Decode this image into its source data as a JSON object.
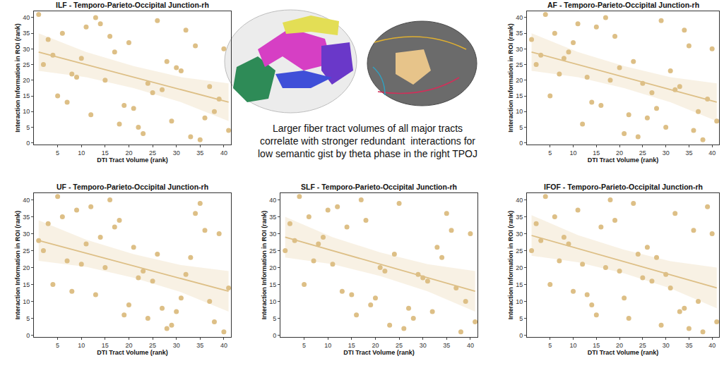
{
  "chart_data": [
    {
      "type": "scatter",
      "title": "ILF - Temporo-Parieto-Occipital Junction-rh",
      "x_label": "DTI Tract Volume (rank)",
      "y_label": "Interaction Information in ROI (rank)",
      "x": [
        1,
        2,
        3,
        4,
        5,
        6,
        7,
        8,
        9,
        10,
        11,
        12,
        13,
        14,
        15,
        16,
        17,
        18,
        19,
        20,
        21,
        22,
        23,
        24,
        25,
        26,
        27,
        28,
        29,
        30,
        31,
        32,
        33,
        34,
        35,
        36,
        37,
        38,
        39,
        40,
        41
      ],
      "values": [
        41,
        25,
        33,
        28,
        15,
        35,
        13,
        22,
        21,
        27,
        37,
        9,
        40,
        38,
        20,
        34,
        29,
        6,
        12,
        32,
        11,
        5,
        3,
        19,
        16,
        39,
        17,
        26,
        7,
        24,
        23,
        36,
        2,
        31,
        1,
        8,
        18,
        10,
        14,
        30,
        4
      ],
      "color": "#ddbf86",
      "fit": {
        "x": [
          1,
          41
        ],
        "values": [
          29,
          13
        ]
      },
      "band": {
        "x": [
          1,
          11,
          21,
          31,
          41
        ],
        "lower": [
          23,
          21,
          17.5,
          13,
          7
        ],
        "upper": [
          35,
          29,
          24.5,
          21,
          19
        ]
      },
      "xlim": [
        0,
        41.5
      ],
      "xticks": [
        5,
        10,
        15,
        20,
        25,
        30,
        35,
        40
      ],
      "ylim": [
        -0.5,
        42
      ],
      "yticks": [
        0,
        5,
        10,
        15,
        20,
        25,
        30,
        35,
        40
      ]
    },
    {
      "type": "scatter",
      "title": "AF - Temporo-Parieto-Occipital Junction-rh",
      "x_label": "DTI Tract Volume (rank)",
      "y_label": "Interaction Information in ROI (rank)",
      "x": [
        1,
        2,
        3,
        4,
        5,
        6,
        7,
        8,
        9,
        10,
        11,
        12,
        13,
        14,
        15,
        16,
        17,
        18,
        19,
        20,
        21,
        22,
        23,
        24,
        25,
        26,
        27,
        28,
        29,
        30,
        31,
        32,
        33,
        34,
        35,
        36,
        37,
        38,
        39,
        40,
        41
      ],
      "values": [
        33,
        25,
        28,
        41,
        15,
        35,
        22,
        27,
        29,
        32,
        38,
        6,
        21,
        13,
        37,
        12,
        40,
        20,
        34,
        24,
        3,
        9,
        26,
        2,
        19,
        8,
        16,
        11,
        39,
        5,
        23,
        17,
        18,
        36,
        31,
        4,
        10,
        1,
        14,
        30,
        7
      ],
      "color": "#ddbf86",
      "fit": {
        "x": [
          1,
          41
        ],
        "values": [
          29,
          13
        ]
      },
      "band": {
        "x": [
          1,
          11,
          21,
          31,
          41
        ],
        "lower": [
          23,
          21,
          17.5,
          13,
          7
        ],
        "upper": [
          35,
          29,
          24.5,
          21,
          19
        ]
      },
      "xlim": [
        0,
        41.5
      ],
      "xticks": [
        5,
        10,
        15,
        20,
        25,
        30,
        35,
        40
      ],
      "ylim": [
        -0.5,
        42
      ],
      "yticks": [
        0,
        5,
        10,
        15,
        20,
        25,
        30,
        35,
        40
      ]
    },
    {
      "type": "scatter",
      "title": "UF - Temporo-Parieto-Occipital Junction-rh",
      "x_label": "DTI Tract Volume (rank)",
      "y_label": "Interaction Information in ROI (rank)",
      "x": [
        1,
        2,
        3,
        4,
        5,
        6,
        7,
        8,
        9,
        10,
        11,
        12,
        13,
        14,
        15,
        16,
        17,
        18,
        19,
        20,
        21,
        22,
        23,
        24,
        25,
        26,
        27,
        28,
        29,
        30,
        31,
        32,
        33,
        34,
        35,
        36,
        37,
        38,
        39,
        40,
        41
      ],
      "values": [
        28,
        25,
        33,
        15,
        41,
        35,
        22,
        13,
        37,
        21,
        27,
        38,
        12,
        29,
        20,
        40,
        32,
        34,
        6,
        9,
        26,
        17,
        19,
        5,
        16,
        24,
        8,
        2,
        3,
        7,
        11,
        18,
        23,
        36,
        39,
        31,
        10,
        4,
        30,
        1,
        14
      ],
      "color": "#ddbf86",
      "fit": {
        "x": [
          1,
          41
        ],
        "values": [
          28,
          13
        ]
      },
      "band": {
        "x": [
          1,
          11,
          21,
          31,
          41
        ],
        "lower": [
          22,
          20.25,
          17,
          12.75,
          7
        ],
        "upper": [
          34,
          28.25,
          24,
          20.75,
          19
        ]
      },
      "xlim": [
        0,
        41.5
      ],
      "xticks": [
        5,
        10,
        15,
        20,
        25,
        30,
        35,
        40
      ],
      "ylim": [
        -0.5,
        42
      ],
      "yticks": [
        0,
        5,
        10,
        15,
        20,
        25,
        30,
        35,
        40
      ]
    },
    {
      "type": "scatter",
      "title": "SLF - Temporo-Parieto-Occipital Junction-rh",
      "x_label": "DTI Tract Volume (rank)",
      "y_label": "Interaction Information in ROI (rank)",
      "x": [
        1,
        2,
        3,
        4,
        5,
        6,
        7,
        8,
        9,
        10,
        11,
        12,
        13,
        14,
        15,
        16,
        17,
        18,
        19,
        20,
        21,
        22,
        23,
        24,
        25,
        26,
        27,
        28,
        29,
        30,
        31,
        32,
        33,
        34,
        35,
        36,
        37,
        38,
        39,
        40,
        41
      ],
      "values": [
        25,
        33,
        28,
        41,
        15,
        35,
        22,
        27,
        29,
        37,
        21,
        38,
        13,
        32,
        12,
        6,
        40,
        34,
        9,
        11,
        20,
        19,
        3,
        24,
        39,
        2,
        8,
        5,
        18,
        17,
        16,
        7,
        26,
        23,
        36,
        31,
        14,
        1,
        10,
        30,
        4
      ],
      "color": "#ddbf86",
      "fit": {
        "x": [
          1,
          41
        ],
        "values": [
          29,
          13
        ]
      },
      "band": {
        "x": [
          1,
          11,
          21,
          31,
          41
        ],
        "lower": [
          23,
          21,
          17.5,
          13,
          7
        ],
        "upper": [
          35,
          29,
          24.5,
          21,
          19
        ]
      },
      "xlim": [
        0,
        41.5
      ],
      "xticks": [
        5,
        10,
        15,
        20,
        25,
        30,
        35,
        40
      ],
      "ylim": [
        -0.5,
        42
      ],
      "yticks": [
        0,
        5,
        10,
        15,
        20,
        25,
        30,
        35,
        40
      ]
    },
    {
      "type": "scatter",
      "title": "IFOF - Temporo-Parieto-Occipital Junction-rh",
      "x_label": "DTI Tract Volume (rank)",
      "y_label": "Interaction Information in ROI (rank)",
      "x": [
        1,
        2,
        3,
        4,
        5,
        6,
        7,
        8,
        9,
        10,
        11,
        12,
        13,
        14,
        15,
        16,
        17,
        18,
        19,
        20,
        21,
        22,
        23,
        24,
        25,
        26,
        27,
        28,
        29,
        30,
        31,
        32,
        33,
        34,
        35,
        36,
        37,
        38,
        39,
        40,
        41
      ],
      "values": [
        25,
        33,
        28,
        41,
        15,
        35,
        22,
        29,
        27,
        13,
        37,
        21,
        12,
        9,
        6,
        32,
        20,
        40,
        34,
        19,
        11,
        5,
        39,
        24,
        17,
        26,
        16,
        23,
        3,
        18,
        14,
        36,
        7,
        8,
        2,
        31,
        10,
        1,
        38,
        30,
        4
      ],
      "color": "#ddbf86",
      "fit": {
        "x": [
          1,
          41
        ],
        "values": [
          29.5,
          14
        ]
      },
      "band": {
        "x": [
          1,
          11,
          21,
          31,
          41
        ],
        "lower": [
          23.5,
          21.6,
          18.3,
          13.9,
          8
        ],
        "upper": [
          35.5,
          29.6,
          25.3,
          21.9,
          20
        ]
      },
      "xlim": [
        0,
        41.5
      ],
      "xticks": [
        5,
        10,
        15,
        20,
        25,
        30,
        35,
        40
      ],
      "ylim": [
        -0.5,
        42
      ],
      "yticks": [
        0,
        5,
        10,
        15,
        20,
        25,
        30,
        35,
        40
      ]
    }
  ],
  "caption": [
    "Larger fiber tract volumes of all major tracts",
    "correlate with stronger redundant  interactions for",
    "low semantic gist by theta phase in the right TPOJ"
  ]
}
